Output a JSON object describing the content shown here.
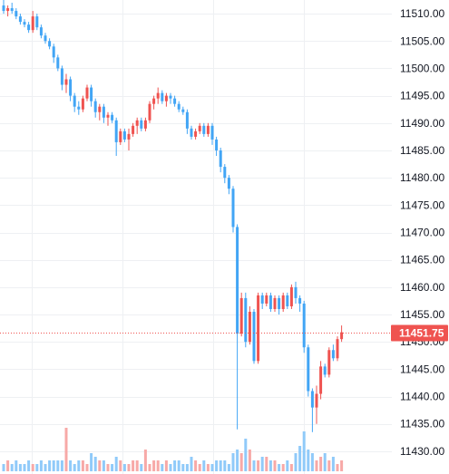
{
  "chart_data": {
    "type": "candlestick",
    "title": "",
    "xlabel": "",
    "ylabel": "",
    "ylim": [
      11427.5,
      11512.5
    ],
    "grid": true,
    "y_ticks": [
      "11510.00",
      "11505.00",
      "11500.00",
      "11495.00",
      "11490.00",
      "11485.00",
      "11480.00",
      "11475.00",
      "11470.00",
      "11465.00",
      "11460.00",
      "11455.00",
      "11450.00",
      "11445.00",
      "11440.00",
      "11435.00",
      "11430.00"
    ],
    "current_price": 11451.75,
    "current_price_label": "11451.75",
    "colors": {
      "up": "#ef5350",
      "down": "#42a5f5",
      "up_volume": "#f7a9a7",
      "down_volume": "#90caf9",
      "price_line": "#ef5350",
      "grid": "#eef0f3"
    },
    "candles": [
      [
        11511.5,
        11512.5,
        11510,
        11510.5
      ],
      [
        11510.5,
        11511.5,
        11509.5,
        11511
      ],
      [
        11511,
        11512,
        11510,
        11510.5
      ],
      [
        11510.5,
        11511,
        11509,
        11509.5
      ],
      [
        11509.5,
        11510,
        11508,
        11508.5
      ],
      [
        11508.5,
        11509,
        11507.5,
        11508
      ],
      [
        11508,
        11508.5,
        11506.5,
        11507
      ],
      [
        11507,
        11510.5,
        11506.5,
        11509.5
      ],
      [
        11509.5,
        11510,
        11507,
        11507.5
      ],
      [
        11507.5,
        11508,
        11505.5,
        11506
      ],
      [
        11506,
        11506.5,
        11504.5,
        11505
      ],
      [
        11505,
        11505.5,
        11503.5,
        11504
      ],
      [
        11504,
        11504.5,
        11501,
        11502
      ],
      [
        11502,
        11502.5,
        11499.5,
        11500
      ],
      [
        11500,
        11500.5,
        11496,
        11497
      ],
      [
        11497,
        11499,
        11495.5,
        11498
      ],
      [
        11498,
        11498.5,
        11494,
        11495
      ],
      [
        11495,
        11495.5,
        11492,
        11493
      ],
      [
        11493,
        11494,
        11491.5,
        11492.5
      ],
      [
        11492.5,
        11495,
        11492,
        11494.5
      ],
      [
        11494.5,
        11497,
        11494,
        11496.5
      ],
      [
        11496.5,
        11497,
        11493,
        11494
      ],
      [
        11494,
        11494.5,
        11491,
        11492
      ],
      [
        11492,
        11493.5,
        11490.5,
        11493
      ],
      [
        11493,
        11493.5,
        11490,
        11491
      ],
      [
        11491,
        11492,
        11489.5,
        11491.5
      ],
      [
        11491.5,
        11492,
        11490,
        11490.5
      ],
      [
        11490.5,
        11491,
        11484,
        11486.5
      ],
      [
        11486.5,
        11489,
        11486,
        11488.5
      ],
      [
        11488.5,
        11489,
        11486.5,
        11487
      ],
      [
        11487,
        11489,
        11485,
        11488
      ],
      [
        11488,
        11490,
        11487.5,
        11489.5
      ],
      [
        11489.5,
        11491,
        11488,
        11490.5
      ],
      [
        11490.5,
        11491,
        11488.5,
        11489
      ],
      [
        11489,
        11491,
        11488.5,
        11490.5
      ],
      [
        11490.5,
        11494,
        11490,
        11493.5
      ],
      [
        11493.5,
        11495,
        11492.5,
        11494.5
      ],
      [
        11494.5,
        11496.5,
        11493.5,
        11495.5
      ],
      [
        11495.5,
        11496,
        11493.5,
        11494
      ],
      [
        11494,
        11495.5,
        11493,
        11495
      ],
      [
        11495,
        11495.5,
        11493.5,
        11494.5
      ],
      [
        11494.5,
        11495,
        11493,
        11493.5
      ],
      [
        11493.5,
        11494,
        11492,
        11492.5
      ],
      [
        11492.5,
        11493,
        11491.5,
        11492
      ],
      [
        11492,
        11492.5,
        11488,
        11489
      ],
      [
        11489,
        11489.5,
        11487,
        11487.5
      ],
      [
        11487.5,
        11489,
        11487,
        11488.5
      ],
      [
        11488.5,
        11490,
        11488,
        11489.5
      ],
      [
        11489.5,
        11490,
        11487.5,
        11488
      ],
      [
        11488,
        11490,
        11487.5,
        11489.5
      ],
      [
        11489.5,
        11490,
        11486,
        11487
      ],
      [
        11487,
        11487.5,
        11484,
        11485
      ],
      [
        11485,
        11485.5,
        11481,
        11482
      ],
      [
        11482,
        11482.5,
        11479,
        11480
      ],
      [
        11480,
        11480.5,
        11477,
        11478
      ],
      [
        11478,
        11478.5,
        11470,
        11471
      ],
      [
        11471,
        11471.5,
        11434,
        11451.5
      ],
      [
        11451.5,
        11459,
        11451,
        11458
      ],
      [
        11458,
        11459,
        11449,
        11450
      ],
      [
        11450,
        11456.5,
        11449.5,
        11455.5
      ],
      [
        11455.5,
        11456,
        11446,
        11446.5
      ],
      [
        11446.5,
        11459,
        11446,
        11458.5
      ],
      [
        11458.5,
        11459,
        11456,
        11457
      ],
      [
        11457,
        11459,
        11456.5,
        11458.5
      ],
      [
        11458.5,
        11459,
        11455.5,
        11456
      ],
      [
        11456,
        11458.5,
        11455.5,
        11458
      ],
      [
        11458,
        11458.5,
        11455,
        11456
      ],
      [
        11456,
        11459,
        11455.5,
        11458.5
      ],
      [
        11458.5,
        11459,
        11456,
        11456.5
      ],
      [
        11456.5,
        11460.5,
        11456,
        11460
      ],
      [
        11460,
        11461,
        11457,
        11458
      ],
      [
        11458,
        11458.5,
        11455.5,
        11457
      ],
      [
        11457,
        11457.5,
        11448,
        11449
      ],
      [
        11449,
        11449.5,
        11440,
        11441
      ],
      [
        11441,
        11441.5,
        11433.5,
        11438
      ],
      [
        11438,
        11442,
        11435,
        11440.5
      ],
      [
        11440.5,
        11446.5,
        11439.5,
        11445.5
      ],
      [
        11445.5,
        11446,
        11443.5,
        11444
      ],
      [
        11444,
        11449,
        11443.5,
        11448.5
      ],
      [
        11448.5,
        11449.5,
        11446.5,
        11447
      ],
      [
        11447,
        11451,
        11446.5,
        11450.5
      ],
      [
        11450.5,
        11453,
        11450,
        11451.75
      ]
    ],
    "volumes": [
      2,
      3,
      2,
      3,
      2,
      2,
      3,
      2,
      2,
      3,
      2,
      3,
      3,
      3,
      3,
      12,
      3,
      2,
      3,
      3,
      2,
      5,
      4,
      3,
      3,
      2,
      2,
      4,
      3,
      2,
      2,
      3,
      3,
      2,
      6,
      2,
      3,
      3,
      2,
      3,
      2,
      3,
      3,
      2,
      2,
      4,
      3,
      2,
      3,
      2,
      2,
      3,
      3,
      3,
      2,
      5,
      6,
      5,
      9,
      6,
      3,
      3,
      4,
      4,
      3,
      3,
      2,
      2,
      3,
      2,
      5,
      7,
      11,
      6,
      5,
      3,
      4,
      5,
      3,
      4,
      2,
      3
    ]
  }
}
